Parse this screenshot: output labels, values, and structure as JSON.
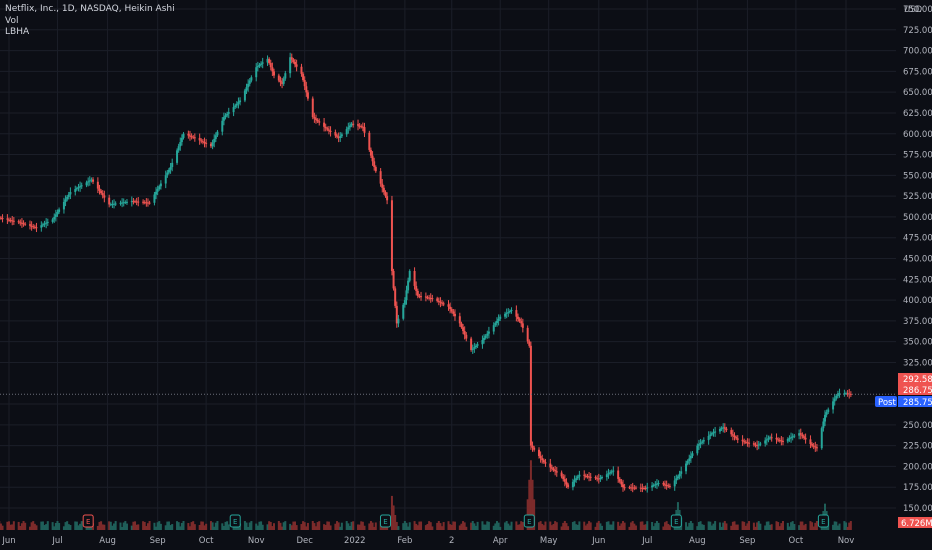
{
  "legend": {
    "symbol_line": "Netflix, Inc., 1D, NASDAQ, Heikin Ashi",
    "volume_label": "Vol",
    "indicator_label": "LBHA"
  },
  "colors": {
    "background": "#0c0e15",
    "grid": "#1b1e28",
    "up": "#26a69a",
    "down": "#ef5350",
    "vol_up": "#1f5f59",
    "vol_down": "#7c2b2b",
    "post_tag": "#2962ff",
    "price_line": "#6b6f7a"
  },
  "chart_data": {
    "type": "candlestick",
    "price_axis": {
      "currency": "USD",
      "ticks": [
        "150.00",
        "175.00",
        "200.00",
        "225.00",
        "250.00",
        "275.00",
        "325.00",
        "350.00",
        "375.00",
        "400.00",
        "425.00",
        "450.00",
        "475.00",
        "500.00",
        "525.00",
        "550.00",
        "575.00",
        "600.00",
        "625.00",
        "650.00",
        "675.00",
        "700.00",
        "725.00",
        "750.00"
      ],
      "range": [
        130,
        765
      ]
    },
    "time_axis": {
      "labels": [
        {
          "text": "Jun",
          "date": "2021-06-01"
        },
        {
          "text": "Jul",
          "date": "2021-07-01"
        },
        {
          "text": "Aug",
          "date": "2021-08-01"
        },
        {
          "text": "Sep",
          "date": "2021-09-01"
        },
        {
          "text": "Oct",
          "date": "2021-10-01"
        },
        {
          "text": "Nov",
          "date": "2021-11-01"
        },
        {
          "text": "Dec",
          "date": "2021-12-01"
        },
        {
          "text": "2022",
          "date": "2022-01-01"
        },
        {
          "text": "Feb",
          "date": "2022-02-01"
        },
        {
          "text": "2",
          "date": "2022-03-02"
        },
        {
          "text": "Apr",
          "date": "2022-04-01"
        },
        {
          "text": "May",
          "date": "2022-05-01"
        },
        {
          "text": "Jun",
          "date": "2022-06-01"
        },
        {
          "text": "Jul",
          "date": "2022-07-01"
        },
        {
          "text": "Aug",
          "date": "2022-08-01"
        },
        {
          "text": "Sep",
          "date": "2022-09-01"
        },
        {
          "text": "Oct",
          "date": "2022-10-01"
        },
        {
          "text": "Nov",
          "date": "2022-11-01"
        }
      ]
    },
    "close_path": [
      [
        "2021-05-24",
        500
      ],
      [
        "2021-06-08",
        493
      ],
      [
        "2021-06-18",
        487
      ],
      [
        "2021-06-28",
        497
      ],
      [
        "2021-07-09",
        530
      ],
      [
        "2021-07-16",
        538
      ],
      [
        "2021-07-22",
        545
      ],
      [
        "2021-08-02",
        515
      ],
      [
        "2021-08-16",
        519
      ],
      [
        "2021-08-27",
        517
      ],
      [
        "2021-09-09",
        560
      ],
      [
        "2021-09-17",
        600
      ],
      [
        "2021-09-24",
        595
      ],
      [
        "2021-10-04",
        585
      ],
      [
        "2021-10-12",
        620
      ],
      [
        "2021-10-22",
        640
      ],
      [
        "2021-11-01",
        680
      ],
      [
        "2021-11-08",
        690
      ],
      [
        "2021-11-12",
        670
      ],
      [
        "2021-11-17",
        660
      ],
      [
        "2021-11-22",
        692
      ],
      [
        "2021-11-29",
        672
      ],
      [
        "2021-12-06",
        620
      ],
      [
        "2021-12-15",
        605
      ],
      [
        "2021-12-22",
        595
      ],
      [
        "2021-12-30",
        612
      ],
      [
        "2022-01-06",
        608
      ],
      [
        "2022-01-13",
        560
      ],
      [
        "2022-01-21",
        520
      ],
      [
        "2022-01-24",
        435
      ],
      [
        "2022-01-27",
        372
      ],
      [
        "2022-02-01",
        400
      ],
      [
        "2022-02-04",
        435
      ],
      [
        "2022-02-09",
        405
      ],
      [
        "2022-02-18",
        402
      ],
      [
        "2022-02-28",
        392
      ],
      [
        "2022-03-07",
        372
      ],
      [
        "2022-03-14",
        340
      ],
      [
        "2022-03-21",
        352
      ],
      [
        "2022-04-01",
        380
      ],
      [
        "2022-04-08",
        388
      ],
      [
        "2022-04-14",
        372
      ],
      [
        "2022-04-19",
        345
      ],
      [
        "2022-04-20",
        225
      ],
      [
        "2022-04-28",
        205
      ],
      [
        "2022-05-09",
        188
      ],
      [
        "2022-05-13",
        175
      ],
      [
        "2022-05-20",
        190
      ],
      [
        "2022-06-01",
        185
      ],
      [
        "2022-06-10",
        195
      ],
      [
        "2022-06-16",
        175
      ],
      [
        "2022-06-30",
        174
      ],
      [
        "2022-07-08",
        180
      ],
      [
        "2022-07-15",
        176
      ],
      [
        "2022-07-20",
        188
      ],
      [
        "2022-08-01",
        225
      ],
      [
        "2022-08-10",
        240
      ],
      [
        "2022-08-17",
        247
      ],
      [
        "2022-08-26",
        232
      ],
      [
        "2022-09-07",
        225
      ],
      [
        "2022-09-15",
        235
      ],
      [
        "2022-09-23",
        230
      ],
      [
        "2022-10-03",
        240
      ],
      [
        "2022-10-11",
        225
      ],
      [
        "2022-10-14",
        222
      ],
      [
        "2022-10-19",
        262
      ],
      [
        "2022-10-27",
        288
      ],
      [
        "2022-11-01",
        288
      ],
      [
        "2022-11-04",
        286.75
      ]
    ],
    "volume_spikes": [
      {
        "date": "2022-01-24",
        "value": 22
      },
      {
        "date": "2022-04-20",
        "value": 45
      },
      {
        "date": "2022-07-20",
        "value": 18
      },
      {
        "date": "2022-10-19",
        "value": 17
      }
    ],
    "volume_last": "6.726M",
    "earnings_markers": [
      {
        "date": "2021-07-20",
        "label": "E",
        "kind": "miss"
      },
      {
        "date": "2021-10-19",
        "label": "E",
        "kind": "beat"
      },
      {
        "date": "2022-01-20",
        "label": "E",
        "kind": "beat"
      },
      {
        "date": "2022-04-19",
        "label": "E",
        "kind": "beat"
      },
      {
        "date": "2022-07-19",
        "label": "E",
        "kind": "beat"
      },
      {
        "date": "2022-10-18",
        "label": "E",
        "kind": "beat"
      }
    ],
    "price_tags": {
      "high": "292.58",
      "last": "286.75",
      "post_label": "Post",
      "post": "285.75"
    },
    "last_price_line": 286.75,
    "grid": true
  }
}
